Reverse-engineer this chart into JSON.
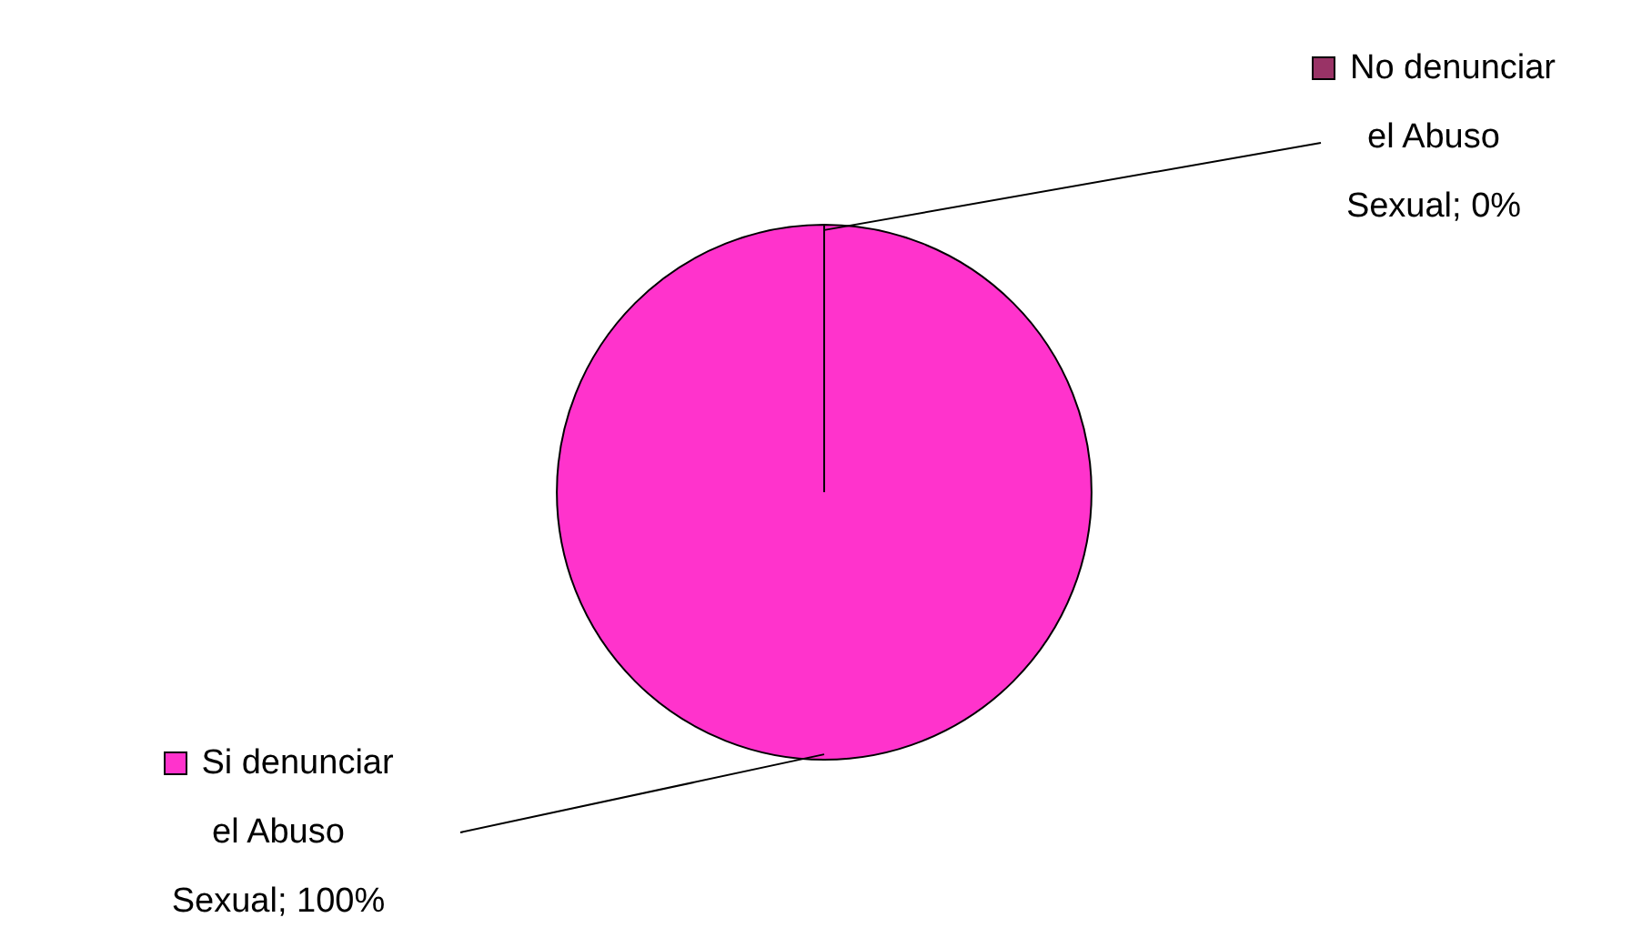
{
  "chart_data": {
    "type": "pie",
    "categories": [
      "No denunciar el Abuso Sexual",
      "Si denunciar el Abuso Sexual"
    ],
    "values": [
      0,
      100
    ],
    "value_labels": [
      "0%",
      "100%"
    ],
    "colors": [
      "#993366",
      "#ff33cc"
    ]
  }
}
